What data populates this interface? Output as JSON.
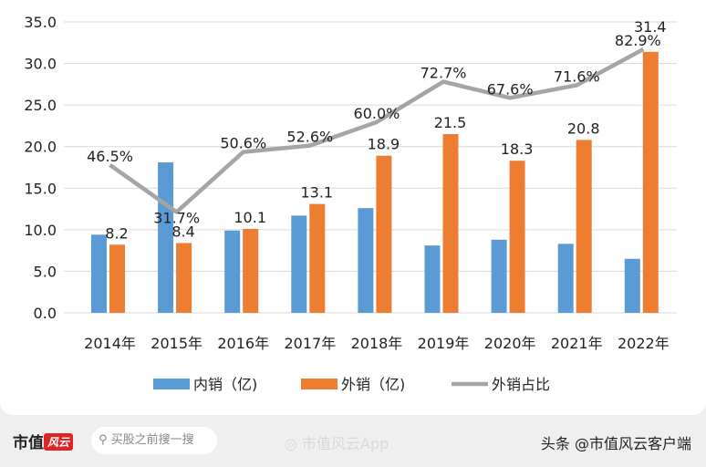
{
  "chart_data": {
    "type": "bar",
    "categories": [
      "2014年",
      "2015年",
      "2016年",
      "2017年",
      "2018年",
      "2019年",
      "2020年",
      "2021年",
      "2022年"
    ],
    "ylim": [
      0,
      35
    ],
    "yticks": [
      "0.0",
      "5.0",
      "10.0",
      "15.0",
      "20.0",
      "25.0",
      "30.0",
      "35.0"
    ],
    "grid": true,
    "legend_placement": "bottom",
    "series": [
      {
        "name": "内销（亿)",
        "type": "bar",
        "color": "#5b9bd5",
        "values": [
          9.4,
          18.1,
          9.9,
          11.7,
          12.6,
          8.1,
          8.8,
          8.3,
          6.5
        ]
      },
      {
        "name": "外销（亿)",
        "type": "bar",
        "color": "#ed7d31",
        "values": [
          8.2,
          8.4,
          10.1,
          13.1,
          18.9,
          21.5,
          18.3,
          20.8,
          31.4
        ],
        "labels": [
          "8.2",
          "8.4",
          "10.1",
          "13.1",
          "18.9",
          "21.5",
          "18.3",
          "20.8",
          "31.4"
        ]
      },
      {
        "name": "外销占比",
        "type": "line",
        "color": "#a5a5a5",
        "axis": "secondary-hidden",
        "values": [
          0.465,
          0.317,
          0.506,
          0.526,
          0.6,
          0.727,
          0.676,
          0.716,
          0.829
        ],
        "labels": [
          "46.5%",
          "31.7%",
          "50.6%",
          "52.6%",
          "60.0%",
          "72.7%",
          "67.6%",
          "71.6%",
          "82.9%"
        ]
      }
    ]
  },
  "footer": {
    "logo_text": "市值",
    "logo_mark": "风云",
    "search_placeholder": "买股之前搜一搜",
    "weibo": "市值风云App",
    "toutiao": "头条 @市值风云客户端"
  }
}
